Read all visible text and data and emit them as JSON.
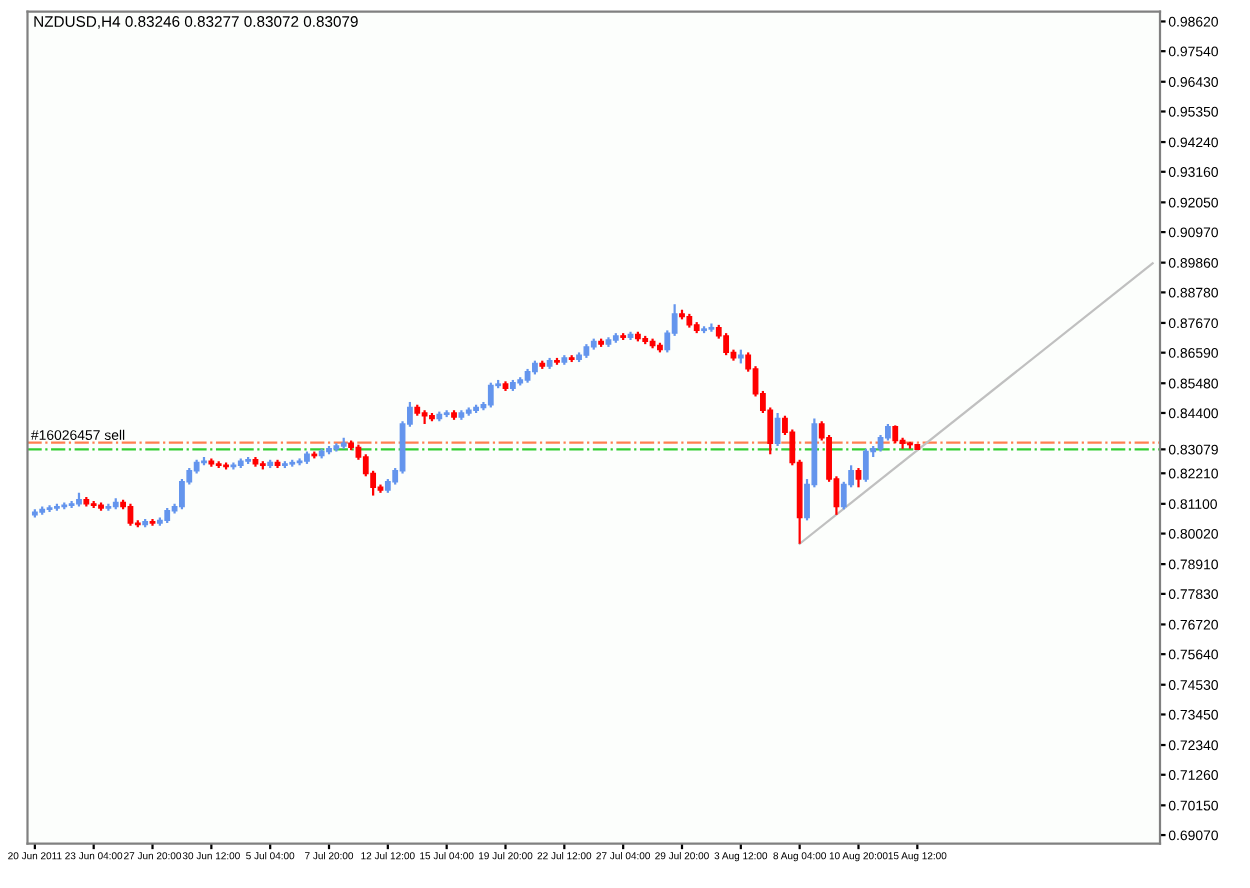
{
  "chart_data": {
    "type": "candlestick",
    "title": "NZDUSD,H4 0.83246 0.83277 0.83072 0.83079",
    "categories": [
      "20 Jun 2011",
      null,
      null,
      null,
      null,
      null,
      null,
      null,
      "23 Jun 04:00",
      null,
      null,
      null,
      null,
      null,
      null,
      null,
      "27 Jun 20:00",
      null,
      null,
      null,
      null,
      null,
      null,
      null,
      "30 Jun 12:00",
      null,
      null,
      null,
      null,
      null,
      null,
      null,
      "5 Jul 04:00",
      null,
      null,
      null,
      null,
      null,
      null,
      null,
      "7 Jul 20:00",
      null,
      null,
      null,
      null,
      null,
      null,
      null,
      "12 Jul 12:00",
      null,
      null,
      null,
      null,
      null,
      null,
      null,
      "15 Jul 04:00",
      null,
      null,
      null,
      null,
      null,
      null,
      null,
      "19 Jul 20:00",
      null,
      null,
      null,
      null,
      null,
      null,
      null,
      "22 Jul 12:00",
      null,
      null,
      null,
      null,
      null,
      null,
      null,
      "27 Jul 04:00",
      null,
      null,
      null,
      null,
      null,
      null,
      null,
      "29 Jul 20:00",
      null,
      null,
      null,
      null,
      null,
      null,
      null,
      "3 Aug 12:00",
      null,
      null,
      null,
      null,
      null,
      null,
      null,
      "8 Aug 04:00",
      null,
      null,
      null,
      null,
      null,
      null,
      null,
      "10 Aug 20:00",
      null,
      null,
      null,
      null,
      null,
      null,
      null,
      "15 Aug 12:00",
      null,
      null,
      null,
      null,
      null,
      null,
      null,
      null,
      null,
      null,
      null,
      null,
      null,
      null,
      null,
      null,
      null,
      null,
      null,
      null,
      null,
      null,
      null,
      null,
      null,
      null,
      null,
      null,
      null,
      null,
      null,
      null
    ],
    "ohlc": [
      [
        0.807,
        0.809,
        0.806,
        0.808
      ],
      [
        0.808,
        0.81,
        0.807,
        0.809
      ],
      [
        0.809,
        0.8105,
        0.808,
        0.8095
      ],
      [
        0.8095,
        0.811,
        0.8085,
        0.81
      ],
      [
        0.81,
        0.8115,
        0.809,
        0.8105
      ],
      [
        0.8105,
        0.812,
        0.8095,
        0.811
      ],
      [
        0.811,
        0.815,
        0.81,
        0.8125
      ],
      [
        0.8125,
        0.8135,
        0.81,
        0.811
      ],
      [
        0.811,
        0.812,
        0.8095,
        0.8105
      ],
      [
        0.8105,
        0.8115,
        0.8085,
        0.8095
      ],
      [
        0.8095,
        0.811,
        0.8085,
        0.81
      ],
      [
        0.81,
        0.813,
        0.809,
        0.8115
      ],
      [
        0.8115,
        0.8125,
        0.809,
        0.81
      ],
      [
        0.81,
        0.811,
        0.803,
        0.804
      ],
      [
        0.804,
        0.805,
        0.8025,
        0.8035
      ],
      [
        0.8035,
        0.8055,
        0.8025,
        0.8045
      ],
      [
        0.8045,
        0.8055,
        0.803,
        0.804
      ],
      [
        0.804,
        0.806,
        0.803,
        0.805
      ],
      [
        0.805,
        0.8095,
        0.804,
        0.8085
      ],
      [
        0.8085,
        0.811,
        0.8075,
        0.81
      ],
      [
        0.81,
        0.82,
        0.809,
        0.819
      ],
      [
        0.819,
        0.824,
        0.818,
        0.823
      ],
      [
        0.823,
        0.827,
        0.822,
        0.826
      ],
      [
        0.826,
        0.828,
        0.825,
        0.8265
      ],
      [
        0.8265,
        0.8275,
        0.8245,
        0.8255
      ],
      [
        0.8255,
        0.8265,
        0.824,
        0.825
      ],
      [
        0.825,
        0.826,
        0.8235,
        0.8245
      ],
      [
        0.8245,
        0.826,
        0.8235,
        0.825
      ],
      [
        0.825,
        0.8275,
        0.824,
        0.8265
      ],
      [
        0.8265,
        0.828,
        0.8255,
        0.827
      ],
      [
        0.827,
        0.828,
        0.8245,
        0.8255
      ],
      [
        0.8255,
        0.8265,
        0.8235,
        0.825
      ],
      [
        0.825,
        0.827,
        0.824,
        0.826
      ],
      [
        0.826,
        0.827,
        0.824,
        0.825
      ],
      [
        0.825,
        0.8265,
        0.824,
        0.8255
      ],
      [
        0.8255,
        0.827,
        0.8245,
        0.826
      ],
      [
        0.826,
        0.8275,
        0.825,
        0.8265
      ],
      [
        0.8265,
        0.83,
        0.8255,
        0.829
      ],
      [
        0.829,
        0.83,
        0.8275,
        0.8285
      ],
      [
        0.8285,
        0.831,
        0.8275,
        0.83
      ],
      [
        0.83,
        0.832,
        0.829,
        0.831
      ],
      [
        0.831,
        0.833,
        0.83,
        0.832
      ],
      [
        0.832,
        0.835,
        0.831,
        0.833
      ],
      [
        0.833,
        0.834,
        0.8305,
        0.8315
      ],
      [
        0.8315,
        0.8325,
        0.827,
        0.828
      ],
      [
        0.828,
        0.829,
        0.821,
        0.822
      ],
      [
        0.822,
        0.823,
        0.814,
        0.817
      ],
      [
        0.817,
        0.818,
        0.815,
        0.816
      ],
      [
        0.816,
        0.82,
        0.815,
        0.819
      ],
      [
        0.819,
        0.824,
        0.818,
        0.823
      ],
      [
        0.823,
        0.841,
        0.822,
        0.84
      ],
      [
        0.84,
        0.848,
        0.839,
        0.846
      ],
      [
        0.846,
        0.847,
        0.843,
        0.844
      ],
      [
        0.844,
        0.845,
        0.84,
        0.843
      ],
      [
        0.843,
        0.844,
        0.841,
        0.842
      ],
      [
        0.842,
        0.8445,
        0.841,
        0.8435
      ],
      [
        0.8435,
        0.845,
        0.8425,
        0.844
      ],
      [
        0.844,
        0.845,
        0.8415,
        0.8425
      ],
      [
        0.8425,
        0.845,
        0.8415,
        0.844
      ],
      [
        0.844,
        0.846,
        0.843,
        0.845
      ],
      [
        0.845,
        0.847,
        0.844,
        0.846
      ],
      [
        0.846,
        0.848,
        0.845,
        0.847
      ],
      [
        0.847,
        0.855,
        0.846,
        0.854
      ],
      [
        0.854,
        0.856,
        0.853,
        0.8545
      ],
      [
        0.8545,
        0.8555,
        0.852,
        0.853
      ],
      [
        0.853,
        0.856,
        0.852,
        0.855
      ],
      [
        0.855,
        0.857,
        0.854,
        0.856
      ],
      [
        0.856,
        0.86,
        0.855,
        0.859
      ],
      [
        0.859,
        0.863,
        0.858,
        0.862
      ],
      [
        0.862,
        0.863,
        0.86,
        0.861
      ],
      [
        0.861,
        0.864,
        0.86,
        0.863
      ],
      [
        0.863,
        0.864,
        0.8615,
        0.8625
      ],
      [
        0.8625,
        0.865,
        0.8615,
        0.864
      ],
      [
        0.864,
        0.865,
        0.8625,
        0.8635
      ],
      [
        0.8635,
        0.866,
        0.8625,
        0.865
      ],
      [
        0.865,
        0.869,
        0.864,
        0.868
      ],
      [
        0.868,
        0.871,
        0.867,
        0.87
      ],
      [
        0.87,
        0.871,
        0.868,
        0.869
      ],
      [
        0.869,
        0.8715,
        0.868,
        0.8705
      ],
      [
        0.8705,
        0.873,
        0.8695,
        0.872
      ],
      [
        0.872,
        0.873,
        0.8705,
        0.8715
      ],
      [
        0.8715,
        0.8735,
        0.8705,
        0.8725
      ],
      [
        0.8725,
        0.8735,
        0.87,
        0.871
      ],
      [
        0.871,
        0.872,
        0.869,
        0.87
      ],
      [
        0.87,
        0.871,
        0.8675,
        0.8685
      ],
      [
        0.8685,
        0.8695,
        0.866,
        0.867
      ],
      [
        0.867,
        0.874,
        0.866,
        0.873
      ],
      [
        0.873,
        0.8835,
        0.872,
        0.88
      ],
      [
        0.88,
        0.8815,
        0.878,
        0.879
      ],
      [
        0.879,
        0.88,
        0.875,
        0.876
      ],
      [
        0.876,
        0.877,
        0.873,
        0.874
      ],
      [
        0.874,
        0.8755,
        0.873,
        0.8745
      ],
      [
        0.8745,
        0.8765,
        0.8735,
        0.875
      ],
      [
        0.875,
        0.876,
        0.871,
        0.872
      ],
      [
        0.872,
        0.873,
        0.865,
        0.866
      ],
      [
        0.866,
        0.867,
        0.863,
        0.864
      ],
      [
        0.864,
        0.867,
        0.862,
        0.865
      ],
      [
        0.865,
        0.866,
        0.859,
        0.86
      ],
      [
        0.86,
        0.861,
        0.85,
        0.851
      ],
      [
        0.851,
        0.852,
        0.844,
        0.845
      ],
      [
        0.845,
        0.846,
        0.829,
        0.833
      ],
      [
        0.833,
        0.844,
        0.832,
        0.842
      ],
      [
        0.842,
        0.843,
        0.836,
        0.837
      ],
      [
        0.837,
        0.838,
        0.825,
        0.826
      ],
      [
        0.826,
        0.827,
        0.7965,
        0.806
      ],
      [
        0.806,
        0.82,
        0.805,
        0.818
      ],
      [
        0.818,
        0.842,
        0.817,
        0.84
      ],
      [
        0.84,
        0.841,
        0.834,
        0.835
      ],
      [
        0.835,
        0.836,
        0.819,
        0.82
      ],
      [
        0.82,
        0.821,
        0.807,
        0.81
      ],
      [
        0.81,
        0.819,
        0.809,
        0.818
      ],
      [
        0.818,
        0.825,
        0.817,
        0.823
      ],
      [
        0.823,
        0.824,
        0.817,
        0.82
      ],
      [
        0.82,
        0.831,
        0.819,
        0.83
      ],
      [
        0.83,
        0.832,
        0.828,
        0.831
      ],
      [
        0.831,
        0.836,
        0.83,
        0.835
      ],
      [
        0.835,
        0.84,
        0.834,
        0.839
      ],
      [
        0.839,
        0.8395,
        0.833,
        0.834
      ],
      [
        0.834,
        0.835,
        0.831,
        0.833
      ],
      [
        0.833,
        0.8335,
        0.831,
        0.8325
      ],
      [
        0.83246,
        0.83277,
        0.83072,
        0.83079
      ],
      null,
      null,
      null,
      null,
      null,
      null,
      null,
      null,
      null,
      null,
      null,
      null,
      null,
      null,
      null,
      null,
      null,
      null,
      null,
      null,
      null,
      null,
      null,
      null,
      null,
      null,
      null,
      null,
      null,
      null,
      null,
      null
    ],
    "colors": [
      "#6495ed",
      "#6495ed",
      "#6495ed",
      "#6495ed",
      "#6495ed",
      "#6495ed",
      "#6495ed",
      "#ff0000",
      "#ff0000",
      "#ff0000",
      "#6495ed",
      "#6495ed",
      "#ff0000",
      "#ff0000",
      "#ff0000",
      "#6495ed",
      "#ff0000",
      "#6495ed",
      "#6495ed",
      "#6495ed",
      "#6495ed",
      "#6495ed",
      "#6495ed",
      "#6495ed",
      "#ff0000",
      "#ff0000",
      "#ff0000",
      "#6495ed",
      "#6495ed",
      "#6495ed",
      "#ff0000",
      "#ff0000",
      "#6495ed",
      "#ff0000",
      "#6495ed",
      "#6495ed",
      "#6495ed",
      "#6495ed",
      "#ff0000",
      "#6495ed",
      "#6495ed",
      "#6495ed",
      "#6495ed",
      "#ff0000",
      "#ff0000",
      "#ff0000",
      "#ff0000",
      "#ff0000",
      "#6495ed",
      "#6495ed",
      "#6495ed",
      "#6495ed",
      "#ff0000",
      "#ff0000",
      "#ff0000",
      "#6495ed",
      "#6495ed",
      "#ff0000",
      "#6495ed",
      "#6495ed",
      "#6495ed",
      "#6495ed",
      "#6495ed",
      "#6495ed",
      "#ff0000",
      "#6495ed",
      "#6495ed",
      "#6495ed",
      "#6495ed",
      "#ff0000",
      "#6495ed",
      "#ff0000",
      "#6495ed",
      "#ff0000",
      "#6495ed",
      "#6495ed",
      "#6495ed",
      "#ff0000",
      "#6495ed",
      "#6495ed",
      "#ff0000",
      "#6495ed",
      "#ff0000",
      "#ff0000",
      "#ff0000",
      "#ff0000",
      "#6495ed",
      "#6495ed",
      "#ff0000",
      "#ff0000",
      "#ff0000",
      "#6495ed",
      "#6495ed",
      "#ff0000",
      "#ff0000",
      "#ff0000",
      "#6495ed",
      "#ff0000",
      "#ff0000",
      "#ff0000",
      "#ff0000",
      "#6495ed",
      "#ff0000",
      "#ff0000",
      "#ff0000",
      "#6495ed",
      "#6495ed",
      "#ff0000",
      "#ff0000",
      "#ff0000",
      "#6495ed",
      "#6495ed",
      "#ff0000",
      "#6495ed",
      "#6495ed",
      "#6495ed",
      "#6495ed",
      "#ff0000",
      "#ff0000",
      "#ff0000",
      "#ff0000",
      null,
      null,
      null,
      null,
      null,
      null,
      null,
      null,
      null,
      null,
      null,
      null,
      null,
      null,
      null,
      null,
      null,
      null,
      null,
      null,
      null,
      null,
      null,
      null,
      null,
      null,
      null,
      null,
      null,
      null,
      null,
      null
    ],
    "series": [
      {
        "type": "line",
        "color": "#c0c0c0",
        "values": [
          null,
          null,
          null,
          null,
          null,
          null,
          null,
          null,
          null,
          null,
          null,
          null,
          null,
          null,
          null,
          null,
          null,
          null,
          null,
          null,
          null,
          null,
          null,
          null,
          null,
          null,
          null,
          null,
          null,
          null,
          null,
          null,
          null,
          null,
          null,
          null,
          null,
          null,
          null,
          null,
          null,
          null,
          null,
          null,
          null,
          null,
          null,
          null,
          null,
          null,
          null,
          null,
          null,
          null,
          null,
          null,
          null,
          null,
          null,
          null,
          null,
          null,
          null,
          null,
          null,
          null,
          null,
          null,
          null,
          null,
          null,
          null,
          null,
          null,
          null,
          null,
          null,
          null,
          null,
          null,
          null,
          null,
          null,
          null,
          null,
          null,
          null,
          null,
          null,
          null,
          null,
          null,
          null,
          null,
          null,
          null,
          null,
          null,
          null,
          null,
          null,
          null,
          null,
          null,
          0.7965,
          null,
          null,
          null,
          null,
          null,
          null,
          null,
          null,
          null,
          null,
          null,
          null,
          null,
          null,
          null,
          null,
          null,
          null,
          null,
          null,
          null,
          null,
          null,
          null,
          null,
          null,
          null,
          null,
          null,
          null,
          null,
          null,
          null,
          null,
          null,
          null,
          null,
          null,
          null,
          null,
          null,
          null,
          null,
          null,
          null,
          null,
          null,
          0.8984
        ]
      }
    ],
    "ref_lines": [
      {
        "axis": "y",
        "value": 0.8332,
        "label": "#16026457 sell",
        "color": "#ff7f50",
        "line_style": "dashdot"
      },
      {
        "axis": "y",
        "value": 0.83079,
        "label": null,
        "color": "#32cd32",
        "line_style": "dashdot"
      }
    ],
    "ylim": [
      0.6876,
      0.9898
    ],
    "yticks": [
      {
        "value": 0.9862,
        "label": "0.98620"
      },
      {
        "value": 0.9754,
        "label": "0.97540"
      },
      {
        "value": 0.9643,
        "label": "0.96430"
      },
      {
        "value": 0.9535,
        "label": "0.95350"
      },
      {
        "value": 0.9424,
        "label": "0.94240"
      },
      {
        "value": 0.9316,
        "label": "0.93160"
      },
      {
        "value": 0.9205,
        "label": "0.92050"
      },
      {
        "value": 0.9097,
        "label": "0.90970"
      },
      {
        "value": 0.8986,
        "label": "0.89860"
      },
      {
        "value": 0.8878,
        "label": "0.88780"
      },
      {
        "value": 0.8767,
        "label": "0.87670"
      },
      {
        "value": 0.8659,
        "label": "0.86590"
      },
      {
        "value": 0.8548,
        "label": "0.85480"
      },
      {
        "value": 0.844,
        "label": "0.84400"
      },
      {
        "value": 0.83079,
        "label": "0.83079"
      },
      {
        "value": 0.8221,
        "label": "0.82210"
      },
      {
        "value": 0.811,
        "label": "0.81100"
      },
      {
        "value": 0.8002,
        "label": "0.80020"
      },
      {
        "value": 0.7891,
        "label": "0.78910"
      },
      {
        "value": 0.7783,
        "label": "0.77830"
      },
      {
        "value": 0.7672,
        "label": "0.76720"
      },
      {
        "value": 0.7564,
        "label": "0.75640"
      },
      {
        "value": 0.7453,
        "label": "0.74530"
      },
      {
        "value": 0.7345,
        "label": "0.73450"
      },
      {
        "value": 0.7234,
        "label": "0.72340"
      },
      {
        "value": 0.7126,
        "label": "0.71260"
      },
      {
        "value": 0.7015,
        "label": "0.70150"
      },
      {
        "value": 0.6907,
        "label": "0.69070"
      }
    ],
    "grid": false,
    "legend": false
  }
}
